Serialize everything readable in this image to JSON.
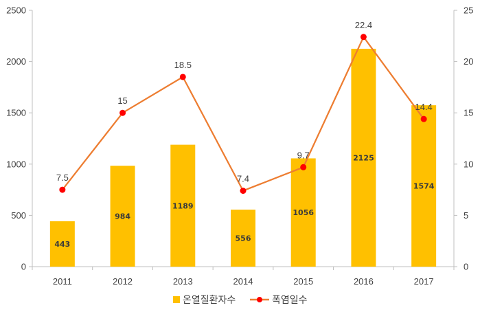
{
  "chart_data": {
    "type": "bar",
    "categories": [
      "2011",
      "2012",
      "2013",
      "2014",
      "2015",
      "2016",
      "2017"
    ],
    "series": [
      {
        "name": "온열질환자수",
        "type": "bar",
        "axis": "left",
        "color": "#FFC000",
        "values": [
          443,
          984,
          1189,
          556,
          1056,
          2125,
          1574
        ],
        "labels": [
          "443",
          "984",
          "1189",
          "556",
          "1056",
          "2125",
          "1574"
        ]
      },
      {
        "name": "폭염일수",
        "type": "line",
        "axis": "right",
        "color": "#ED7D31",
        "marker_color": "#FF0000",
        "values": [
          7.5,
          15,
          18.5,
          7.4,
          9.7,
          22.4,
          14.4
        ],
        "labels": [
          "7.5",
          "15",
          "18.5",
          "7.4",
          "9.7",
          "22.4",
          "14.4"
        ]
      }
    ],
    "y_left": {
      "lim": [
        0,
        2500
      ],
      "ticks": [
        "0",
        "500",
        "1000",
        "1500",
        "2000",
        "2500"
      ]
    },
    "y_right": {
      "lim": [
        0,
        25
      ],
      "ticks": [
        "0",
        "5",
        "10",
        "15",
        "20",
        "25"
      ]
    },
    "grid": false,
    "legend": "bottom-center"
  }
}
